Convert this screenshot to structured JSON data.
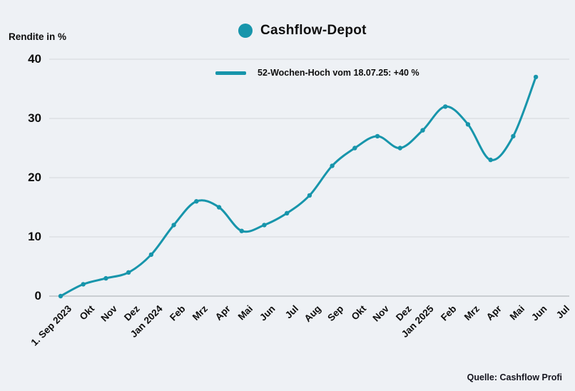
{
  "header": {
    "title": "Cashflow-Depot"
  },
  "y_axis": {
    "title": "Rendite in %"
  },
  "legend": {
    "label": "52-Wochen-Hoch vom 18.07.25: +40 %"
  },
  "footer": {
    "source": "Quelle: Cashflow Profi"
  },
  "chart_data": {
    "type": "line",
    "title": "Cashflow-Depot",
    "ylabel": "Rendite in %",
    "annotation": "52-Wochen-Hoch vom 18.07.25: +40 %",
    "source": "Quelle: Cashflow Profi",
    "categories": [
      "1. Sep 2023",
      "Okt",
      "Nov",
      "Dez",
      "Jan 2024",
      "Feb",
      "Mrz",
      "Apr",
      "Mai",
      "Jun",
      "Jul",
      "Aug",
      "Sep",
      "Okt",
      "Nov",
      "Dez",
      "Jan 2025",
      "Feb",
      "Mrz",
      "Apr",
      "Mai",
      "Jun",
      "Jul"
    ],
    "values": [
      0,
      2,
      3,
      4,
      7,
      12,
      16,
      15,
      11,
      12,
      14,
      17,
      22,
      25,
      27,
      25,
      28,
      32,
      29,
      23,
      27,
      37,
      null
    ],
    "ylim": [
      0,
      40
    ],
    "yticks": [
      0,
      10,
      20,
      30,
      40
    ],
    "grid": "horizontal",
    "legend_position": "top-center",
    "line_color": "#1795ab",
    "grid_color": "#d9dce1",
    "axis_color": "#c5c8cd",
    "background": "#eef1f5",
    "smooth": true
  }
}
